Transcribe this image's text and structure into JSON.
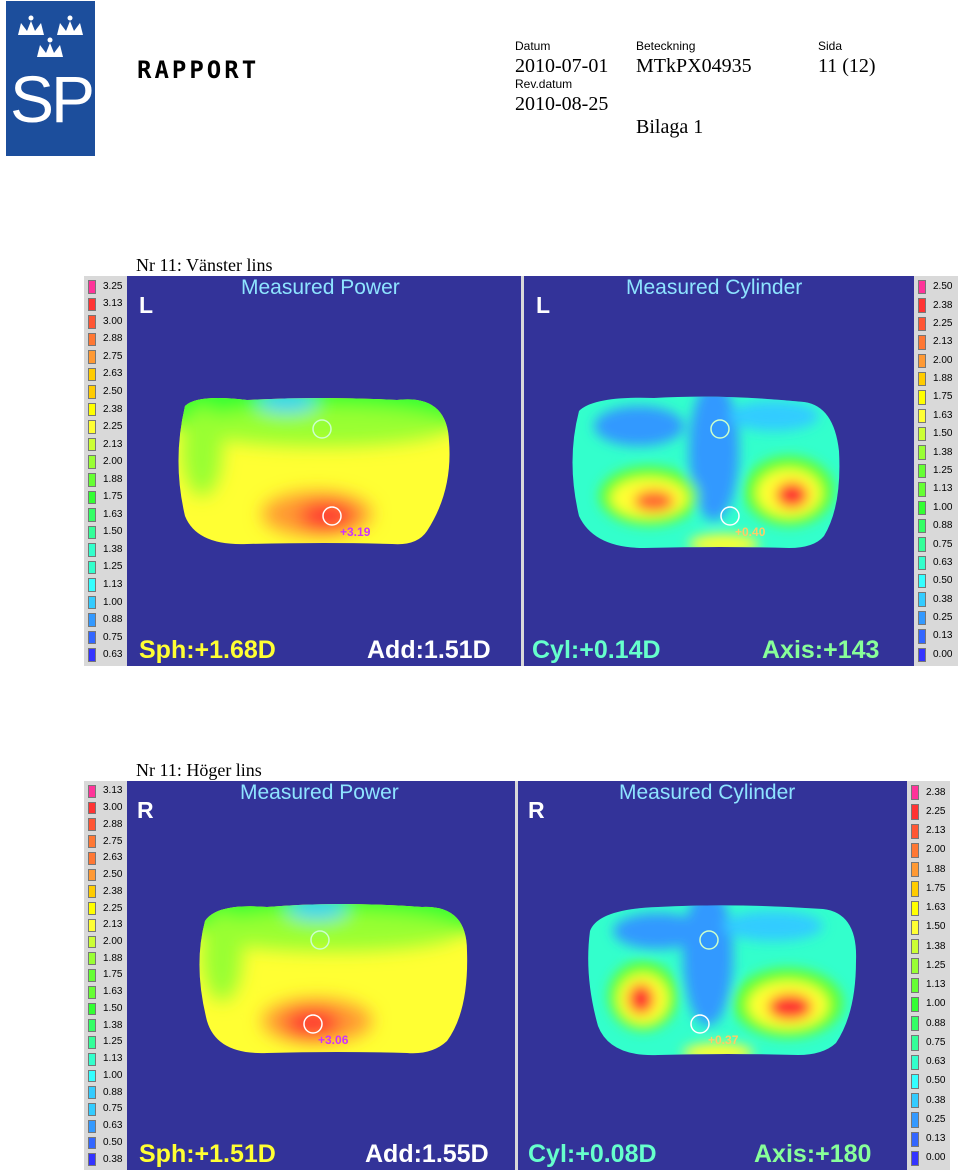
{
  "header": {
    "logo_text": "SP",
    "report_title": "RAPPORT",
    "datum_label": "Datum",
    "datum_value": "2010-07-01",
    "rev_label": "Rev.datum",
    "rev_value": "2010-08-25",
    "beteckning_label": "Beteckning",
    "beteckning_value": "MTkPX04935",
    "bilaga": "Bilaga 1",
    "sida_label": "Sida",
    "sida_value": "11 (12)"
  },
  "colors": {
    "panel_bg": "#333399",
    "scale_bg": "#d9d9d9",
    "logo_bg": "#1c4e9c"
  },
  "scale_colors": [
    "#ff3399",
    "#ff3333",
    "#ff5533",
    "#ff7733",
    "#ff9933",
    "#ffcc00",
    "#ffff00",
    "#ffff33",
    "#ccff33",
    "#99ff33",
    "#66ff33",
    "#33ff33",
    "#33ff66",
    "#33ff99",
    "#33ffcc",
    "#33ffff",
    "#33ccff",
    "#3399ff",
    "#3366ff",
    "#3333ff"
  ],
  "left_lens": {
    "title": "Nr 11: Vänster lins",
    "eye": "L",
    "power_title": "Measured Power",
    "cylinder_title": "Measured Cylinder",
    "power_scale": [
      "3.25",
      "3.13",
      "3.00",
      "2.88",
      "2.75",
      "2.63",
      "2.50",
      "2.38",
      "2.25",
      "2.13",
      "2.00",
      "1.88",
      "1.75",
      "1.63",
      "1.50",
      "1.38",
      "1.25",
      "1.13",
      "1.00",
      "0.88",
      "0.75",
      "0.63"
    ],
    "cylinder_scale": [
      "2.50",
      "2.38",
      "2.25",
      "2.13",
      "2.00",
      "1.88",
      "1.75",
      "1.63",
      "1.50",
      "1.38",
      "1.25",
      "1.13",
      "1.00",
      "0.88",
      "0.75",
      "0.63",
      "0.50",
      "0.38",
      "0.25",
      "0.13",
      "0.00"
    ],
    "power_value": "+3.19",
    "cylinder_value": "+0.40",
    "sph": "Sph:+1.68D",
    "add": "Add:1.51D",
    "cyl": "Cyl:+0.14D",
    "axis": "Axis:+143"
  },
  "right_lens": {
    "title": "Nr 11: Höger lins",
    "eye": "R",
    "power_title": "Measured Power",
    "cylinder_title": "Measured Cylinder",
    "power_scale": [
      "3.13",
      "3.00",
      "2.88",
      "2.75",
      "2.63",
      "2.50",
      "2.38",
      "2.25",
      "2.13",
      "2.00",
      "1.88",
      "1.75",
      "1.63",
      "1.50",
      "1.38",
      "1.25",
      "1.13",
      "1.00",
      "0.88",
      "0.75",
      "0.63",
      "0.50",
      "0.38"
    ],
    "cylinder_scale": [
      "2.38",
      "2.25",
      "2.13",
      "2.00",
      "1.88",
      "1.75",
      "1.63",
      "1.50",
      "1.38",
      "1.25",
      "1.13",
      "1.00",
      "0.88",
      "0.75",
      "0.63",
      "0.50",
      "0.38",
      "0.25",
      "0.13",
      "0.00"
    ],
    "power_value": "+3.06",
    "cylinder_value": "+0.37",
    "sph": "Sph:+1.51D",
    "add": "Add:1.55D",
    "cyl": "Cyl:+0.08D",
    "axis": "Axis:+180"
  }
}
